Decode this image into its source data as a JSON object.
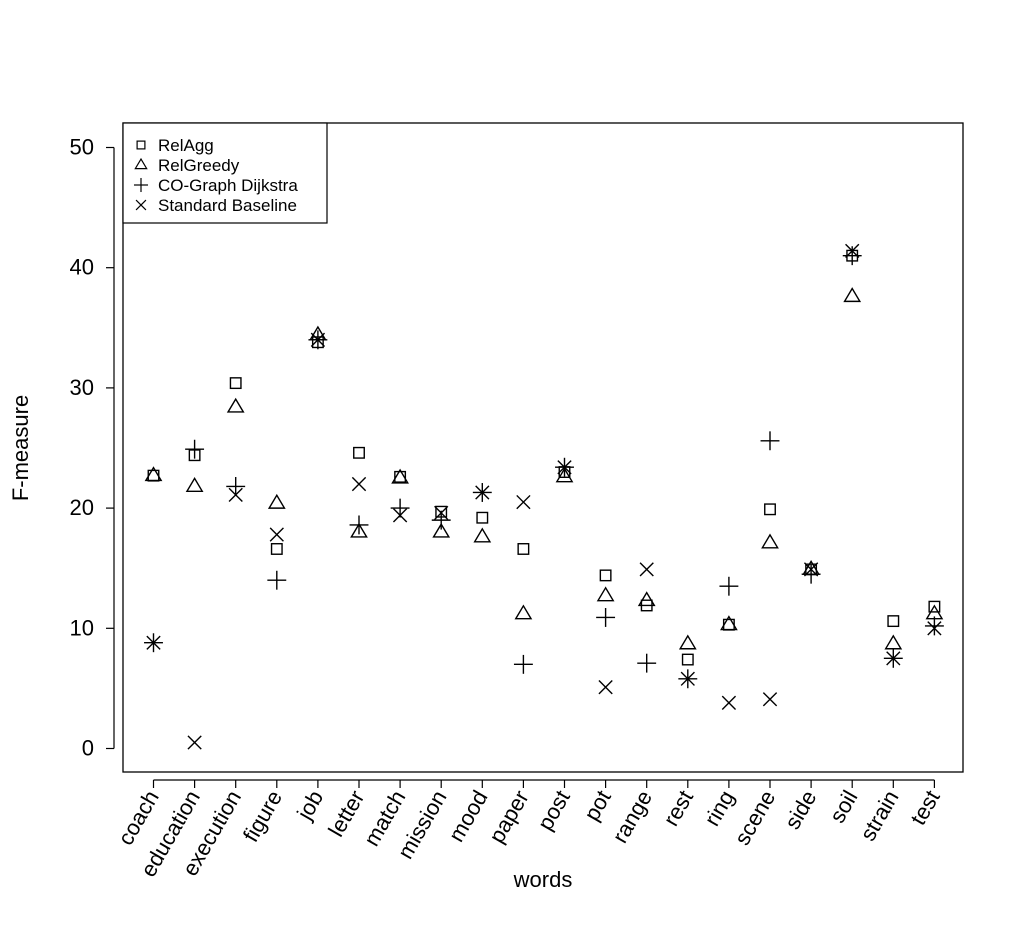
{
  "chart_data": {
    "type": "scatter",
    "title": "",
    "xlabel": "words",
    "ylabel": "F-measure",
    "ylim": [
      -2,
      52
    ],
    "yticks": [
      0,
      10,
      20,
      30,
      40,
      50
    ],
    "grid": false,
    "legend_position": "top-left",
    "categories": [
      "coach",
      "education",
      "execution",
      "figure",
      "job",
      "letter",
      "match",
      "mission",
      "mood",
      "paper",
      "post",
      "pot",
      "range",
      "rest",
      "ring",
      "scene",
      "side",
      "soil",
      "strain",
      "test"
    ],
    "series": [
      {
        "name": "RelAgg",
        "marker": "square",
        "values": [
          22.7,
          24.4,
          30.4,
          16.6,
          33.8,
          24.6,
          22.6,
          19.7,
          19.2,
          16.6,
          23.0,
          14.4,
          11.9,
          7.4,
          10.3,
          19.9,
          14.9,
          41.0,
          10.6,
          11.8
        ]
      },
      {
        "name": "RelGreedy",
        "marker": "triangle",
        "values": [
          22.7,
          21.8,
          28.4,
          20.4,
          34.4,
          18.0,
          22.5,
          18.0,
          17.6,
          11.2,
          22.6,
          12.7,
          12.3,
          8.7,
          10.3,
          17.1,
          14.9,
          37.6,
          8.7,
          11.2
        ]
      },
      {
        "name": "CO-Graph Dijkstra",
        "marker": "plus",
        "values": [
          8.8,
          24.9,
          21.8,
          14.0,
          34.0,
          18.6,
          20.0,
          19.0,
          21.3,
          7.0,
          23.4,
          10.9,
          7.1,
          5.8,
          13.5,
          25.6,
          14.5,
          41.0,
          7.5,
          10.2
        ]
      },
      {
        "name": "Standard Baseline",
        "marker": "cross",
        "values": [
          8.8,
          0.5,
          21.1,
          17.8,
          34.0,
          22.0,
          19.4,
          19.6,
          21.3,
          20.5,
          23.4,
          5.1,
          14.9,
          5.8,
          3.8,
          4.1,
          14.9,
          41.4,
          7.5,
          10.0
        ]
      }
    ]
  }
}
